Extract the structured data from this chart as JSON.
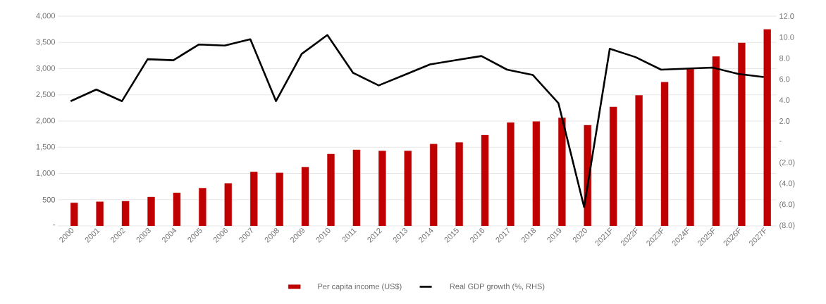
{
  "chart_data": {
    "type": "bar",
    "categories": [
      "2000",
      "2001",
      "2002",
      "2003",
      "2004",
      "2005",
      "2006",
      "2007",
      "2008",
      "2009",
      "2010",
      "2011",
      "2012",
      "2013",
      "2014",
      "2015",
      "2016",
      "2017",
      "2018",
      "2019",
      "2020",
      "2021F",
      "2022F",
      "2023F",
      "2024F",
      "2025F",
      "2026F",
      "2027F"
    ],
    "series": [
      {
        "name": "Per capita income (US$)",
        "color": "#c00000",
        "values": [
          440,
          460,
          470,
          550,
          630,
          720,
          810,
          1030,
          1010,
          1120,
          1370,
          1450,
          1430,
          1430,
          1560,
          1590,
          1730,
          1970,
          1990,
          2060,
          1920,
          2270,
          2490,
          2740,
          2990,
          3230,
          3490,
          3750
        ]
      },
      {
        "name": "Real GDP growth (%, RHS)",
        "type": "line",
        "axis": "y2",
        "color": "#000000",
        "values": [
          3.9,
          5.0,
          3.9,
          7.9,
          7.8,
          9.3,
          9.2,
          9.8,
          3.9,
          8.4,
          10.2,
          6.6,
          5.4,
          6.4,
          7.4,
          7.8,
          8.2,
          6.9,
          6.4,
          3.7,
          -6.2,
          8.9,
          8.1,
          6.9,
          7.0,
          7.1,
          6.5,
          6.2
        ]
      }
    ],
    "ylim": [
      0,
      4000
    ],
    "yticks": [
      {
        "value": 0,
        "label": "-"
      },
      {
        "value": 500,
        "label": "500"
      },
      {
        "value": 1000,
        "label": "1,000"
      },
      {
        "value": 1500,
        "label": "1,500"
      },
      {
        "value": 2000,
        "label": "2,000"
      },
      {
        "value": 2500,
        "label": "2,500"
      },
      {
        "value": 3000,
        "label": "3,000"
      },
      {
        "value": 3500,
        "label": "3,500"
      },
      {
        "value": 4000,
        "label": "4,000"
      }
    ],
    "y2lim": [
      -8,
      12
    ],
    "y2ticks": [
      {
        "value": -8,
        "label": "(8.0)"
      },
      {
        "value": -6,
        "label": "(6.0)"
      },
      {
        "value": -4,
        "label": "(4.0)"
      },
      {
        "value": -2,
        "label": "(2.0)"
      },
      {
        "value": 0,
        "label": "-"
      },
      {
        "value": 2,
        "label": "2.0"
      },
      {
        "value": 4,
        "label": "4.0"
      },
      {
        "value": 6,
        "label": "6.0"
      },
      {
        "value": 8,
        "label": "8.0"
      },
      {
        "value": 10,
        "label": "10.0"
      },
      {
        "value": 12,
        "label": "12.0"
      }
    ],
    "grid": "y",
    "legend": "bottom"
  }
}
